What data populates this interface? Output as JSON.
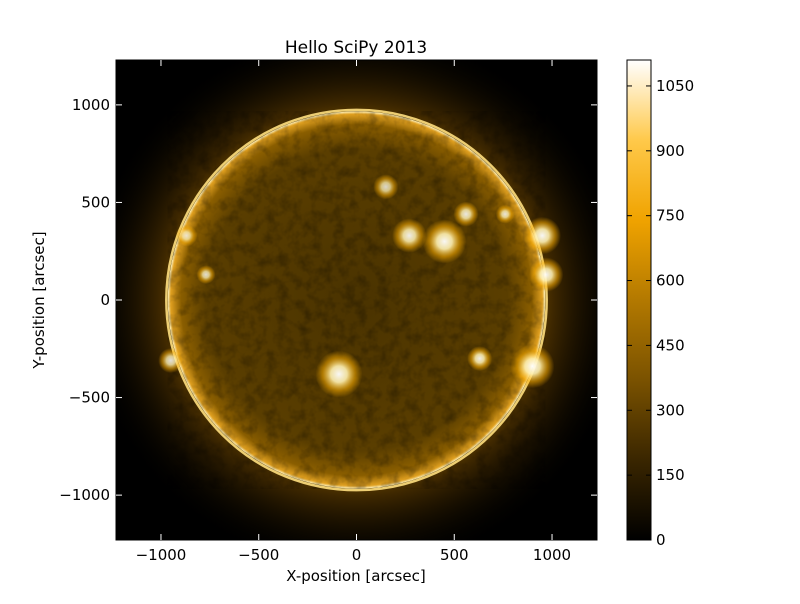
{
  "chart_data": {
    "type": "heatmap",
    "title": "Hello SciPy 2013",
    "xlabel": "X-position [arcsec]",
    "ylabel": "Y-position [arcsec]",
    "xlim": [
      -1230,
      1230
    ],
    "ylim": [
      -1230,
      1230
    ],
    "x_ticks": [
      {
        "value": -1000,
        "label": "−1000"
      },
      {
        "value": -500,
        "label": "−500"
      },
      {
        "value": 0,
        "label": "0"
      },
      {
        "value": 500,
        "label": "500"
      },
      {
        "value": 1000,
        "label": "1000"
      }
    ],
    "y_ticks": [
      {
        "value": -1000,
        "label": "−1000"
      },
      {
        "value": -500,
        "label": "−500"
      },
      {
        "value": 0,
        "label": "0"
      },
      {
        "value": 500,
        "label": "500"
      },
      {
        "value": 1000,
        "label": "1000"
      }
    ],
    "colorbar": {
      "range": [
        0,
        1110
      ],
      "ticks": [
        {
          "value": 0,
          "label": "0"
        },
        {
          "value": 150,
          "label": "150"
        },
        {
          "value": 300,
          "label": "300"
        },
        {
          "value": 450,
          "label": "450"
        },
        {
          "value": 600,
          "label": "600"
        },
        {
          "value": 750,
          "label": "750"
        },
        {
          "value": 900,
          "label": "900"
        },
        {
          "value": 1050,
          "label": "1050"
        }
      ],
      "colors": [
        "#000000",
        "#3a2600",
        "#7a5200",
        "#b37900",
        "#f0a300",
        "#ffc94a",
        "#ffffff"
      ]
    },
    "solar_disk": {
      "center": [
        0,
        0
      ],
      "radius": 965
    },
    "bright_regions": [
      {
        "x": 450,
        "y": 300,
        "r": 70,
        "intensity": 1050
      },
      {
        "x": 270,
        "y": 330,
        "r": 55,
        "intensity": 950
      },
      {
        "x": 560,
        "y": 440,
        "r": 40,
        "intensity": 900
      },
      {
        "x": 950,
        "y": 330,
        "r": 60,
        "intensity": 1050
      },
      {
        "x": 970,
        "y": 130,
        "r": 55,
        "intensity": 1000
      },
      {
        "x": 900,
        "y": -340,
        "r": 70,
        "intensity": 1050
      },
      {
        "x": -90,
        "y": -380,
        "r": 75,
        "intensity": 1050
      },
      {
        "x": 630,
        "y": -300,
        "r": 40,
        "intensity": 950
      },
      {
        "x": 760,
        "y": 440,
        "r": 30,
        "intensity": 850
      },
      {
        "x": -770,
        "y": 130,
        "r": 30,
        "intensity": 800
      },
      {
        "x": -950,
        "y": -310,
        "r": 40,
        "intensity": 850
      },
      {
        "x": 150,
        "y": 580,
        "r": 40,
        "intensity": 750
      },
      {
        "x": -870,
        "y": 330,
        "r": 35,
        "intensity": 750
      }
    ]
  }
}
